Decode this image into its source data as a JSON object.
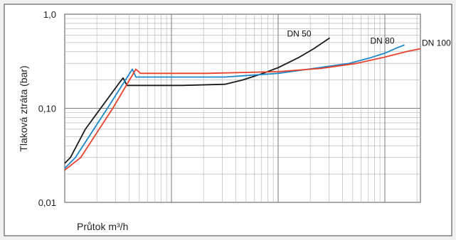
{
  "chart_data": {
    "type": "line",
    "title": "",
    "ylabel": "Tlaková ztráta (bar)",
    "xlabel": "Průtok m³/h",
    "y_scale": "log",
    "x_scale": "log",
    "ylim": [
      0.01,
      1.0
    ],
    "y_ticks": [
      {
        "value": 0.01,
        "label": "0,01"
      },
      {
        "value": 0.1,
        "label": "0,10"
      },
      {
        "value": 1.0,
        "label": "1,0"
      }
    ],
    "grid": true,
    "colors": {
      "DN 50": "#1a1a1a",
      "DN 80": "#1e88c8",
      "DN 100": "#e8412b"
    },
    "series": [
      {
        "name": "DN 50",
        "color": "#1a1a1a",
        "points": [
          [
            0,
            0.026
          ],
          [
            0.016,
            0.03
          ],
          [
            0.058,
            0.06
          ],
          [
            0.155,
            0.19
          ],
          [
            0.164,
            0.21
          ],
          [
            0.175,
            0.175
          ],
          [
            0.33,
            0.175
          ],
          [
            0.45,
            0.18
          ],
          [
            0.5,
            0.2
          ],
          [
            0.55,
            0.23
          ],
          [
            0.6,
            0.27
          ],
          [
            0.66,
            0.35
          ],
          [
            0.7,
            0.43
          ],
          [
            0.745,
            0.56
          ]
        ]
      },
      {
        "name": "DN 80",
        "color": "#1e88c8",
        "points": [
          [
            0,
            0.023
          ],
          [
            0.03,
            0.03
          ],
          [
            0.12,
            0.1
          ],
          [
            0.19,
            0.26
          ],
          [
            0.2,
            0.215
          ],
          [
            0.45,
            0.215
          ],
          [
            0.6,
            0.235
          ],
          [
            0.7,
            0.265
          ],
          [
            0.8,
            0.3
          ],
          [
            0.86,
            0.345
          ],
          [
            0.9,
            0.385
          ],
          [
            0.935,
            0.44
          ],
          [
            0.955,
            0.47
          ]
        ]
      },
      {
        "name": "DN 100",
        "color": "#e8412b",
        "points": [
          [
            0,
            0.022
          ],
          [
            0.045,
            0.03
          ],
          [
            0.135,
            0.1
          ],
          [
            0.2,
            0.26
          ],
          [
            0.213,
            0.235
          ],
          [
            0.4,
            0.235
          ],
          [
            0.6,
            0.245
          ],
          [
            0.72,
            0.265
          ],
          [
            0.82,
            0.3
          ],
          [
            0.9,
            0.35
          ],
          [
            0.96,
            0.4
          ],
          [
            1.0,
            0.43
          ]
        ]
      }
    ]
  }
}
